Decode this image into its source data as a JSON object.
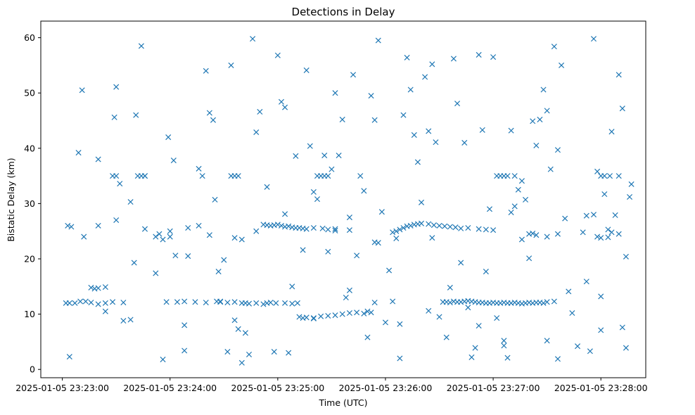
{
  "chart_data": {
    "type": "scatter",
    "title": "Detections in Delay",
    "xlabel": "Time (UTC)",
    "ylabel": "Bistatic Delay (km)",
    "marker": "x",
    "color": "#1f77b4",
    "x_unit": "seconds after 2025-01-05 23:23:00",
    "xlim": [
      -12,
      325
    ],
    "ylim": [
      -1.5,
      63
    ],
    "xticks": [
      {
        "value": 0,
        "label": "2025-01-05 23:23:00"
      },
      {
        "value": 60,
        "label": "2025-01-05 23:24:00"
      },
      {
        "value": 120,
        "label": "2025-01-05 23:25:00"
      },
      {
        "value": 180,
        "label": "2025-01-05 23:26:00"
      },
      {
        "value": 240,
        "label": "2025-01-05 23:27:00"
      },
      {
        "value": 300,
        "label": "2025-01-05 23:28:00"
      }
    ],
    "yticks": [
      {
        "value": 0,
        "label": "0"
      },
      {
        "value": 10,
        "label": "10"
      },
      {
        "value": 20,
        "label": "20"
      },
      {
        "value": 30,
        "label": "30"
      },
      {
        "value": 40,
        "label": "40"
      },
      {
        "value": 50,
        "label": "50"
      },
      {
        "value": 60,
        "label": "60"
      }
    ],
    "points": [
      [
        2,
        12
      ],
      [
        4,
        12
      ],
      [
        7,
        12
      ],
      [
        10,
        12.3
      ],
      [
        13,
        12.3
      ],
      [
        16,
        12.1
      ],
      [
        20,
        11.8
      ],
      [
        24,
        12
      ],
      [
        28,
        12.2
      ],
      [
        34,
        12.1
      ],
      [
        58,
        12.2
      ],
      [
        64,
        12.2
      ],
      [
        68,
        12.3
      ],
      [
        74,
        12.2
      ],
      [
        80,
        12.1
      ],
      [
        86,
        12.3
      ],
      [
        88,
        12.2
      ],
      [
        92,
        12.1
      ],
      [
        96,
        12.2
      ],
      [
        100,
        12
      ],
      [
        102,
        12
      ],
      [
        104,
        11.9
      ],
      [
        108,
        12
      ],
      [
        112,
        11.8
      ],
      [
        114,
        12
      ],
      [
        116,
        12.1
      ],
      [
        119,
        12
      ],
      [
        124,
        12
      ],
      [
        128,
        11.9
      ],
      [
        131,
        12
      ],
      [
        112,
        26.2
      ],
      [
        114,
        26.1
      ],
      [
        116,
        26
      ],
      [
        118,
        26.1
      ],
      [
        120,
        26.2
      ],
      [
        122,
        26
      ],
      [
        124,
        25.8
      ],
      [
        126,
        25.9
      ],
      [
        128,
        25.7
      ],
      [
        130,
        25.6
      ],
      [
        132,
        25.6
      ],
      [
        134,
        25.5
      ],
      [
        136,
        25.4
      ],
      [
        140,
        25.6
      ],
      [
        145,
        25.5
      ],
      [
        152,
        25.4
      ],
      [
        160,
        25.2
      ],
      [
        184,
        24.8
      ],
      [
        186,
        25
      ],
      [
        188,
        25.3
      ],
      [
        190,
        25.6
      ],
      [
        192,
        25.9
      ],
      [
        194,
        26
      ],
      [
        196,
        26.2
      ],
      [
        198,
        26.3
      ],
      [
        200,
        26.4
      ],
      [
        204,
        26.3
      ],
      [
        207,
        26.1
      ],
      [
        210,
        26
      ],
      [
        213,
        25.9
      ],
      [
        216,
        25.8
      ],
      [
        219,
        25.7
      ],
      [
        222,
        25.5
      ],
      [
        226,
        25.6
      ],
      [
        232,
        25.4
      ],
      [
        236,
        25.3
      ],
      [
        240,
        25.2
      ],
      [
        212,
        12.2
      ],
      [
        214,
        12.2
      ],
      [
        216,
        12.1
      ],
      [
        218,
        12.3
      ],
      [
        220,
        12.2
      ],
      [
        222,
        12.2
      ],
      [
        224,
        12.3
      ],
      [
        226,
        12.4
      ],
      [
        228,
        12.3
      ],
      [
        230,
        12.2
      ],
      [
        232,
        12.1
      ],
      [
        234,
        12.1
      ],
      [
        236,
        12
      ],
      [
        238,
        12
      ],
      [
        240,
        12.1
      ],
      [
        242,
        12
      ],
      [
        244,
        12
      ],
      [
        246,
        12.1
      ],
      [
        248,
        12
      ],
      [
        250,
        12
      ],
      [
        252,
        12.1
      ],
      [
        254,
        12
      ],
      [
        256,
        11.9
      ],
      [
        258,
        12
      ],
      [
        260,
        12.1
      ],
      [
        262,
        12
      ],
      [
        264,
        12.1
      ],
      [
        266,
        12.1
      ],
      [
        268,
        12
      ],
      [
        270,
        12.2
      ],
      [
        274,
        12.3
      ],
      [
        132,
        9.5
      ],
      [
        134,
        9.3
      ],
      [
        136,
        9.4
      ],
      [
        140,
        9.3
      ],
      [
        144,
        9.6
      ],
      [
        148,
        9.7
      ],
      [
        152,
        9.8
      ],
      [
        156,
        10
      ],
      [
        160,
        10.2
      ],
      [
        164,
        10.3
      ],
      [
        168,
        10.1
      ],
      [
        170,
        10.5
      ],
      [
        172,
        10.3
      ],
      [
        174,
        12.1
      ],
      [
        28,
        35
      ],
      [
        30,
        35
      ],
      [
        42,
        35
      ],
      [
        44,
        35
      ],
      [
        46,
        35
      ],
      [
        94,
        35
      ],
      [
        96,
        35
      ],
      [
        98,
        35
      ],
      [
        142,
        35
      ],
      [
        144,
        35
      ],
      [
        146,
        35
      ],
      [
        148,
        35
      ],
      [
        242,
        35
      ],
      [
        244,
        35
      ],
      [
        246,
        35
      ],
      [
        248,
        35
      ],
      [
        252,
        35
      ],
      [
        300,
        35
      ],
      [
        302,
        35
      ],
      [
        305,
        35
      ],
      [
        310,
        35
      ],
      [
        16,
        14.8
      ],
      [
        18,
        14.6
      ],
      [
        20,
        14.7
      ],
      [
        24,
        14.9
      ],
      [
        24,
        10.5
      ],
      [
        3,
        26
      ],
      [
        5,
        25.8
      ],
      [
        12,
        24
      ],
      [
        20,
        26
      ],
      [
        30,
        27
      ],
      [
        38,
        30.3
      ],
      [
        46,
        25.4
      ],
      [
        52,
        24
      ],
      [
        54,
        24.5
      ],
      [
        60,
        25
      ],
      [
        70,
        25.6
      ],
      [
        76,
        26
      ],
      [
        82,
        24.3
      ],
      [
        96,
        23.8
      ],
      [
        100,
        23.5
      ],
      [
        108,
        25
      ],
      [
        124,
        28.1
      ],
      [
        148,
        25.3
      ],
      [
        152,
        25.1
      ],
      [
        160,
        27.5
      ],
      [
        174,
        23
      ],
      [
        176,
        22.9
      ],
      [
        206,
        23.8
      ],
      [
        250,
        28.4
      ],
      [
        256,
        23.5
      ],
      [
        260,
        24.5
      ],
      [
        262,
        24.6
      ],
      [
        264,
        24.3
      ],
      [
        270,
        24
      ],
      [
        276,
        24.5
      ],
      [
        292,
        27.8
      ],
      [
        298,
        24
      ],
      [
        300,
        23.8
      ],
      [
        304,
        25.3
      ],
      [
        306,
        24.8
      ],
      [
        310,
        24.5
      ],
      [
        9,
        39.2
      ],
      [
        11,
        50.5
      ],
      [
        20,
        38
      ],
      [
        29,
        45.6
      ],
      [
        30,
        51.1
      ],
      [
        34,
        8.8
      ],
      [
        38,
        9
      ],
      [
        40,
        19.3
      ],
      [
        41,
        46
      ],
      [
        44,
        58.5
      ],
      [
        46,
        35
      ],
      [
        52,
        17.4
      ],
      [
        56,
        23.5
      ],
      [
        59,
        42
      ],
      [
        60,
        24
      ],
      [
        62,
        37.8
      ],
      [
        63,
        20.6
      ],
      [
        68,
        8
      ],
      [
        70,
        20.5
      ],
      [
        76,
        36.3
      ],
      [
        78,
        35
      ],
      [
        80,
        54
      ],
      [
        82,
        46.4
      ],
      [
        84,
        45.1
      ],
      [
        85,
        30.7
      ],
      [
        87,
        17.7
      ],
      [
        88,
        12.3
      ],
      [
        90,
        19.8
      ],
      [
        92,
        3.2
      ],
      [
        94,
        55
      ],
      [
        96,
        8.9
      ],
      [
        98,
        7.3
      ],
      [
        102,
        6.6
      ],
      [
        104,
        2.7
      ],
      [
        106,
        59.8
      ],
      [
        108,
        42.9
      ],
      [
        110,
        46.6
      ],
      [
        114,
        33
      ],
      [
        118,
        3.2
      ],
      [
        120,
        56.8
      ],
      [
        122,
        48.4
      ],
      [
        124,
        47.4
      ],
      [
        126,
        3
      ],
      [
        128,
        15
      ],
      [
        130,
        38.6
      ],
      [
        134,
        21.6
      ],
      [
        136,
        54.1
      ],
      [
        138,
        40.4
      ],
      [
        140,
        32.1
      ],
      [
        142,
        30.8
      ],
      [
        146,
        38.7
      ],
      [
        148,
        21.3
      ],
      [
        150,
        36.2
      ],
      [
        152,
        50
      ],
      [
        154,
        38.7
      ],
      [
        156,
        45.2
      ],
      [
        158,
        13
      ],
      [
        160,
        14.3
      ],
      [
        162,
        53.3
      ],
      [
        164,
        20.6
      ],
      [
        166,
        35
      ],
      [
        168,
        32.3
      ],
      [
        170,
        5.8
      ],
      [
        172,
        49.5
      ],
      [
        174,
        45.1
      ],
      [
        176,
        59.5
      ],
      [
        178,
        28.5
      ],
      [
        180,
        8.5
      ],
      [
        182,
        17.9
      ],
      [
        184,
        12.3
      ],
      [
        186,
        23.7
      ],
      [
        188,
        2
      ],
      [
        190,
        46
      ],
      [
        192,
        56.4
      ],
      [
        194,
        50.6
      ],
      [
        196,
        42.4
      ],
      [
        198,
        37.5
      ],
      [
        200,
        30.2
      ],
      [
        202,
        52.9
      ],
      [
        204,
        43.1
      ],
      [
        206,
        55.2
      ],
      [
        208,
        41.1
      ],
      [
        210,
        9.5
      ],
      [
        214,
        5.8
      ],
      [
        216,
        14.8
      ],
      [
        218,
        56.2
      ],
      [
        220,
        48.1
      ],
      [
        222,
        19.3
      ],
      [
        224,
        41
      ],
      [
        226,
        11.2
      ],
      [
        228,
        2.2
      ],
      [
        230,
        3.9
      ],
      [
        232,
        56.9
      ],
      [
        234,
        43.3
      ],
      [
        236,
        17.7
      ],
      [
        238,
        29
      ],
      [
        240,
        56.5
      ],
      [
        242,
        9.3
      ],
      [
        246,
        4.3
      ],
      [
        248,
        2.1
      ],
      [
        250,
        43.2
      ],
      [
        252,
        29.5
      ],
      [
        254,
        32.5
      ],
      [
        256,
        34.1
      ],
      [
        258,
        30.7
      ],
      [
        260,
        20.1
      ],
      [
        262,
        44.9
      ],
      [
        264,
        40.5
      ],
      [
        266,
        45.2
      ],
      [
        268,
        50.6
      ],
      [
        270,
        46.8
      ],
      [
        272,
        36.2
      ],
      [
        274,
        58.4
      ],
      [
        276,
        39.7
      ],
      [
        278,
        55
      ],
      [
        280,
        27.3
      ],
      [
        282,
        14.1
      ],
      [
        284,
        10.2
      ],
      [
        287,
        4.2
      ],
      [
        292,
        15.9
      ],
      [
        294,
        3.3
      ],
      [
        296,
        59.8
      ],
      [
        298,
        35.8
      ],
      [
        300,
        13.2
      ],
      [
        302,
        31.7
      ],
      [
        304,
        23.9
      ],
      [
        306,
        43
      ],
      [
        308,
        27.9
      ],
      [
        310,
        53.3
      ],
      [
        312,
        47.2
      ],
      [
        314,
        20.4
      ],
      [
        316,
        31.2
      ],
      [
        317,
        33.5
      ],
      [
        4,
        2.3
      ],
      [
        32,
        33.6
      ],
      [
        56,
        1.8
      ],
      [
        68,
        3.4
      ],
      [
        100,
        1.2
      ],
      [
        140,
        9.2
      ],
      [
        188,
        8.2
      ],
      [
        204,
        10.6
      ],
      [
        232,
        7.9
      ],
      [
        246,
        5.2
      ],
      [
        270,
        5.2
      ],
      [
        276,
        1.9
      ],
      [
        300,
        7.1
      ],
      [
        312,
        7.6
      ],
      [
        314,
        3.9
      ],
      [
        290,
        24.8
      ],
      [
        296,
        28
      ]
    ]
  }
}
